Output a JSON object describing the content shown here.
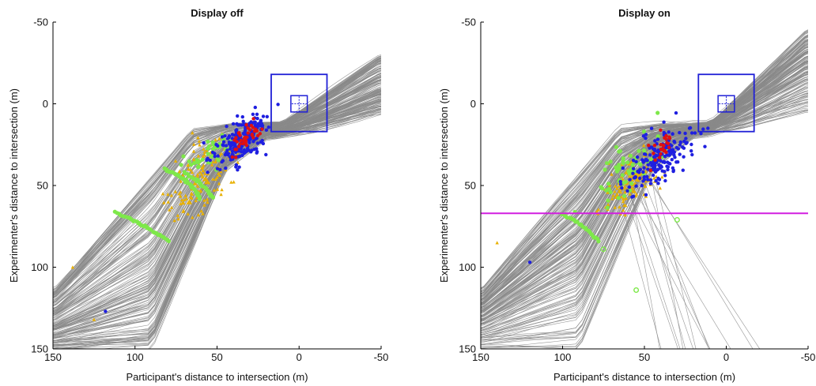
{
  "chart_data": [
    {
      "type": "line",
      "title": "Display off",
      "xlabel": "Participant's distance to intersection (m)",
      "ylabel": "Experimenter's distance to intersection (m)",
      "xlim": [
        150,
        -50
      ],
      "ylim": [
        -50,
        150
      ],
      "x_ticks": [
        150,
        100,
        50,
        0,
        -50
      ],
      "y_ticks": [
        -50,
        0,
        50,
        100,
        150
      ],
      "x_tick_labels": [
        "150",
        "100",
        "50",
        "0",
        "-50"
      ],
      "y_tick_labels": [
        "-50",
        "0",
        "50",
        "100",
        "150"
      ],
      "x_reversed": true,
      "y_reversed": true,
      "grid": false,
      "colors": {
        "trajectories": "#8a8a8a",
        "box": "#1f1fd6",
        "blue": "#1f1fe0",
        "red": "#e01010",
        "orange": "#e8b000",
        "green": "#7ee84a"
      },
      "trajectory_band": {
        "upper": [
          [
            150,
            115
          ],
          [
            95,
            50
          ],
          [
            65,
            15
          ],
          [
            40,
            12
          ],
          [
            10,
            12
          ],
          [
            -50,
            -30
          ]
        ],
        "lower": [
          [
            150,
            150
          ],
          [
            90,
            150
          ],
          [
            45,
            40
          ],
          [
            20,
            20
          ],
          [
            -10,
            15
          ],
          [
            -50,
            5
          ]
        ]
      },
      "boxes": [
        {
          "x": [
            -17,
            17
          ],
          "y": [
            -18,
            17
          ]
        },
        {
          "x": [
            -5,
            5
          ],
          "y": [
            -5,
            5
          ]
        }
      ],
      "arcs": [
        {
          "name": "green",
          "points": [
            [
              112,
              66
            ],
            [
              102,
              71
            ],
            [
              94,
              75
            ],
            [
              86,
              80
            ],
            [
              79,
              84
            ]
          ]
        },
        {
          "name": "green",
          "points": [
            [
              82,
              40
            ],
            [
              75,
              43
            ],
            [
              69,
              47
            ],
            [
              64,
              52
            ],
            [
              60,
              58
            ]
          ]
        },
        {
          "name": "green",
          "points": [
            [
              70,
              42
            ],
            [
              62,
              47
            ],
            [
              56,
              53
            ],
            [
              52,
              58
            ]
          ]
        }
      ],
      "scatter_regions": [
        {
          "name": "blue",
          "cx": 35,
          "cy": 22,
          "sx": 14,
          "sy": 12,
          "n": 200
        },
        {
          "name": "red",
          "cx": 33,
          "cy": 22,
          "sx": 8,
          "sy": 8,
          "n": 40
        },
        {
          "name": "orange",
          "cx": 60,
          "cy": 45,
          "sx": 20,
          "sy": 18,
          "n": 150
        },
        {
          "name": "green",
          "cx": 55,
          "cy": 30,
          "sx": 15,
          "sy": 8,
          "n": 40
        }
      ],
      "outliers": [
        {
          "name": "blue",
          "x": 118,
          "y": 127
        },
        {
          "name": "orange",
          "x": 125,
          "y": 132
        },
        {
          "name": "orange",
          "x": 138,
          "y": 100
        }
      ]
    },
    {
      "type": "line",
      "title": "Display on",
      "xlabel": "Participant's distance to intersection (m)",
      "ylabel": "Experimenter's distance to intersection (m)",
      "xlim": [
        150,
        -50
      ],
      "ylim": [
        -50,
        150
      ],
      "x_ticks": [
        150,
        100,
        50,
        0,
        -50
      ],
      "y_ticks": [
        -50,
        0,
        50,
        100,
        150
      ],
      "x_tick_labels": [
        "150",
        "100",
        "50",
        "0",
        "-50"
      ],
      "y_tick_labels": [
        "-50",
        "0",
        "50",
        "100",
        "150"
      ],
      "x_reversed": true,
      "y_reversed": true,
      "grid": false,
      "colors": {
        "trajectories": "#8a8a8a",
        "box": "#1f1fd6",
        "blue": "#1f1fe0",
        "red": "#e01010",
        "orange": "#e8b000",
        "green": "#7ee84a",
        "hline": "#d21fe0"
      },
      "hline_y": 67,
      "trajectory_band": {
        "upper": [
          [
            150,
            115
          ],
          [
            95,
            50
          ],
          [
            65,
            15
          ],
          [
            40,
            12
          ],
          [
            10,
            12
          ],
          [
            -50,
            -45
          ]
        ],
        "lower": [
          [
            150,
            150
          ],
          [
            90,
            150
          ],
          [
            45,
            40
          ],
          [
            20,
            20
          ],
          [
            -10,
            15
          ],
          [
            -50,
            5
          ]
        ]
      },
      "boxes": [
        {
          "x": [
            -17,
            17
          ],
          "y": [
            -18,
            17
          ]
        },
        {
          "x": [
            -5,
            5
          ],
          "y": [
            -5,
            5
          ]
        }
      ],
      "arcs": [
        {
          "name": "green",
          "points": [
            [
              100,
              68
            ],
            [
              92,
              72
            ],
            [
              84,
              78
            ],
            [
              78,
              84
            ]
          ]
        }
      ],
      "scatter_regions": [
        {
          "name": "blue",
          "cx": 40,
          "cy": 32,
          "sx": 18,
          "sy": 14,
          "n": 190
        },
        {
          "name": "red",
          "cx": 40,
          "cy": 28,
          "sx": 8,
          "sy": 10,
          "n": 25
        },
        {
          "name": "orange",
          "cx": 58,
          "cy": 48,
          "sx": 16,
          "sy": 14,
          "n": 140
        },
        {
          "name": "green",
          "cx": 60,
          "cy": 40,
          "sx": 18,
          "sy": 15,
          "n": 60
        }
      ],
      "outliers": [
        {
          "name": "blue",
          "x": 120,
          "y": 97
        },
        {
          "name": "orange",
          "x": 140,
          "y": 85
        },
        {
          "name": "green",
          "x": 75,
          "y": 89
        },
        {
          "name": "green",
          "x": 55,
          "y": 114
        },
        {
          "name": "green",
          "x": 30,
          "y": 71
        }
      ]
    }
  ]
}
